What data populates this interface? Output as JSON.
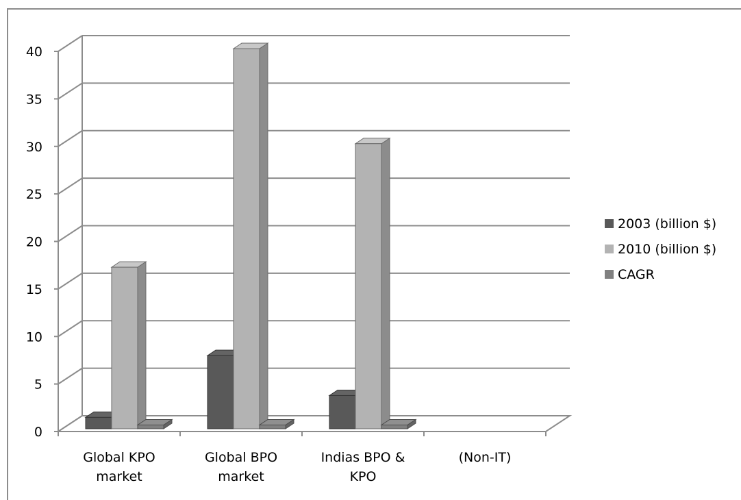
{
  "chart_data": {
    "type": "bar",
    "style": "3d-clustered-column",
    "categories": [
      [
        "Global KPO",
        "market"
      ],
      [
        "Global BPO",
        "market"
      ],
      [
        "Indias BPO &",
        "KPO"
      ],
      [
        "(Non-IT)"
      ]
    ],
    "series": [
      {
        "name": "2003 (billion $)",
        "values": [
          1.2,
          7.7,
          3.5,
          0
        ],
        "color": "#595959"
      },
      {
        "name": "2010 (billion $)",
        "values": [
          17,
          40,
          30,
          0
        ],
        "color": "#b3b3b3"
      },
      {
        "name": "CAGR",
        "values": [
          0.4,
          0.4,
          0.4,
          0
        ],
        "color": "#808080"
      }
    ],
    "yticks": [
      "0",
      "5",
      "10",
      "15",
      "20",
      "25",
      "30",
      "35",
      "40"
    ],
    "ylim": [
      0,
      40
    ],
    "title": "",
    "xlabel": "",
    "ylabel": "",
    "grid": true,
    "legend_position": "right"
  }
}
